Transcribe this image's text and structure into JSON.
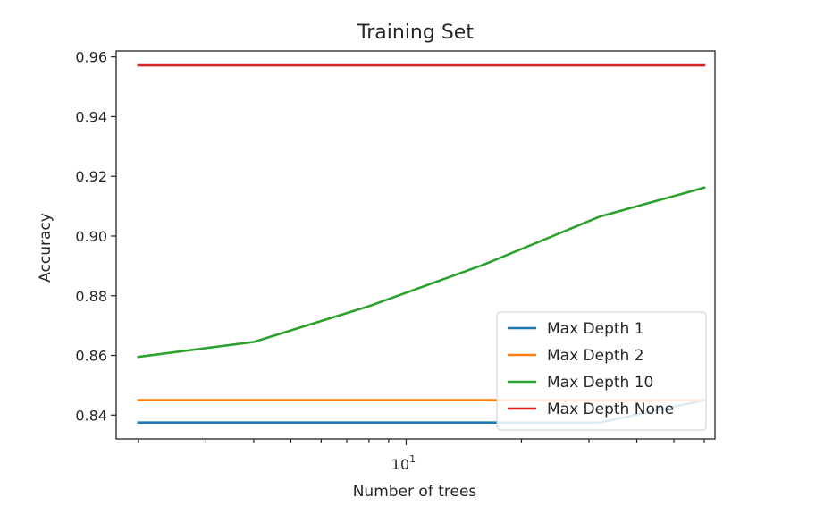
{
  "chart_data": {
    "type": "line",
    "title": "Training Set",
    "xlabel": "Number of trees",
    "ylabel": "Accuracy",
    "xscale": "log",
    "xlim": [
      1.75,
      64
    ],
    "ylim": [
      0.832,
      0.962
    ],
    "x": [
      2,
      4,
      8,
      16,
      32,
      60
    ],
    "y_ticks": [
      "0.84",
      "0.86",
      "0.88",
      "0.90",
      "0.92",
      "0.94",
      "0.96"
    ],
    "y_tick_values": [
      0.84,
      0.86,
      0.88,
      0.9,
      0.92,
      0.94,
      0.96
    ],
    "x_major_tick": {
      "value": 10,
      "base": "10",
      "exponent": "1"
    },
    "grid": false,
    "legend_position": "lower-right",
    "series": [
      {
        "name": "Max Depth 1",
        "color": "#1f77b4",
        "values": [
          0.8375,
          0.8375,
          0.8375,
          0.8375,
          0.8375,
          0.845
        ]
      },
      {
        "name": "Max Depth 2",
        "color": "#ff7f0e",
        "values": [
          0.845,
          0.845,
          0.845,
          0.845,
          0.845,
          0.845
        ]
      },
      {
        "name": "Max Depth 10",
        "color": "#2ca02c",
        "values": [
          0.8595,
          0.8645,
          0.8765,
          0.8905,
          0.9065,
          0.9162
        ]
      },
      {
        "name": "Max Depth None",
        "color": "#d62728",
        "values": [
          0.9572,
          0.9572,
          0.9572,
          0.9572,
          0.9572,
          0.9572
        ]
      }
    ]
  }
}
